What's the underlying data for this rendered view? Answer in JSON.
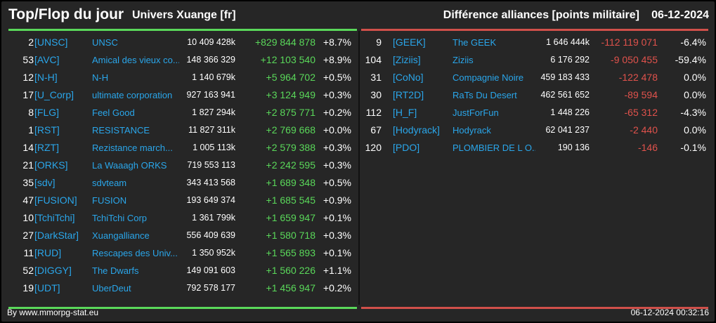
{
  "header": {
    "title": "Top/Flop du jour",
    "universe": "Univers Xuange [fr]",
    "subtitle": "Différence alliances [points militaire]",
    "date": "06-12-2024"
  },
  "colors": {
    "positive": "#5ad85a",
    "negative": "#e0524c",
    "link": "#2aa6ea",
    "background": "#262626"
  },
  "top": [
    {
      "rank": "2",
      "tag": "[UNSC]",
      "name": "UNSC",
      "points": "10 409 428k",
      "diff": "+829 844 878",
      "pct": "+8.7%"
    },
    {
      "rank": "53",
      "tag": "[AVC]",
      "name": "Amical des vieux co...",
      "points": "148 366 329",
      "diff": "+12 103 540",
      "pct": "+8.9%"
    },
    {
      "rank": "12",
      "tag": "[N-H]",
      "name": "N-H",
      "points": "1 140 679k",
      "diff": "+5 964 702",
      "pct": "+0.5%"
    },
    {
      "rank": "17",
      "tag": "[U_Corp]",
      "name": "ultimate corporation",
      "points": "927 163 941",
      "diff": "+3 124 949",
      "pct": "+0.3%"
    },
    {
      "rank": "8",
      "tag": "[FLG]",
      "name": "Feel Good",
      "points": "1 827 294k",
      "diff": "+2 875 771",
      "pct": "+0.2%"
    },
    {
      "rank": "1",
      "tag": "[RST]",
      "name": "RESISTANCE",
      "points": "11 827 311k",
      "diff": "+2 769 668",
      "pct": "+0.0%"
    },
    {
      "rank": "14",
      "tag": "[RZT]",
      "name": "Rezistance march...",
      "points": "1 005 113k",
      "diff": "+2 579 388",
      "pct": "+0.3%"
    },
    {
      "rank": "21",
      "tag": "[ORKS]",
      "name": "La Waaagh ORKS",
      "points": "719 553 113",
      "diff": "+2 242 595",
      "pct": "+0.3%"
    },
    {
      "rank": "35",
      "tag": "[sdv]",
      "name": "sdvteam",
      "points": "343 413 568",
      "diff": "+1 689 348",
      "pct": "+0.5%"
    },
    {
      "rank": "47",
      "tag": "[FUSION]",
      "name": "FUSION",
      "points": "193 649 374",
      "diff": "+1 685 545",
      "pct": "+0.9%"
    },
    {
      "rank": "10",
      "tag": "[TchiTchi]",
      "name": "TchiTchi Corp",
      "points": "1 361 799k",
      "diff": "+1 659 947",
      "pct": "+0.1%"
    },
    {
      "rank": "27",
      "tag": "[DarkStar]",
      "name": "Xuangalliance",
      "points": "556 409 639",
      "diff": "+1 580 718",
      "pct": "+0.3%"
    },
    {
      "rank": "11",
      "tag": "[RUD]",
      "name": "Rescapes des Univ...",
      "points": "1 350 952k",
      "diff": "+1 565 893",
      "pct": "+0.1%"
    },
    {
      "rank": "52",
      "tag": "[DIGGY]",
      "name": "The Dwarfs",
      "points": "149 091 603",
      "diff": "+1 560 226",
      "pct": "+1.1%"
    },
    {
      "rank": "19",
      "tag": "[UDT]",
      "name": "UberDeut",
      "points": "792 578 177",
      "diff": "+1 456 947",
      "pct": "+0.2%"
    }
  ],
  "flop": [
    {
      "rank": "9",
      "tag": "[GEEK]",
      "name": "The GEEK",
      "points": "1 646 444k",
      "diff": "-112 119 071",
      "pct": "-6.4%"
    },
    {
      "rank": "104",
      "tag": "[Ziziis]",
      "name": "Ziziis",
      "points": "6 176 292",
      "diff": "-9 050 455",
      "pct": "-59.4%"
    },
    {
      "rank": "31",
      "tag": "[CoNo]",
      "name": "Compagnie Noire",
      "points": "459 183 433",
      "diff": "-122 478",
      "pct": "0.0%"
    },
    {
      "rank": "30",
      "tag": "[RT2D]",
      "name": "RaTs Du Desert",
      "points": "462 561 652",
      "diff": "-89 594",
      "pct": "0.0%"
    },
    {
      "rank": "112",
      "tag": "[H_F]",
      "name": "JustForFun",
      "points": "1 448 226",
      "diff": "-65 312",
      "pct": "-4.3%"
    },
    {
      "rank": "67",
      "tag": "[Hodyrack]",
      "name": "Hodyrack",
      "points": "62 041 237",
      "diff": "-2 440",
      "pct": "0.0%"
    },
    {
      "rank": "120",
      "tag": "[PDO]",
      "name": "PLOMBIER DE L O...",
      "points": "190 136",
      "diff": "-146",
      "pct": "-0.1%"
    }
  ],
  "footer": {
    "source": "By www.mmorpg-stat.eu",
    "timestamp": "06-12-2024 00:32:16"
  }
}
